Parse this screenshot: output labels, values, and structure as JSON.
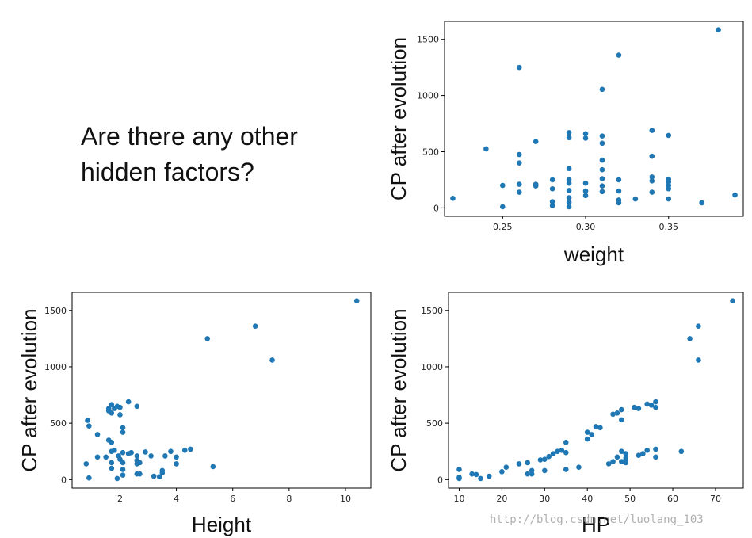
{
  "slide": {
    "question_lines": [
      "Are there any other",
      "hidden factors?"
    ],
    "watermark": "http://blog.csdn.net/luolang_103"
  },
  "colors": {
    "point": "#1f77b4",
    "axis": "#000000",
    "text": "#111111"
  },
  "chart_data": [
    {
      "type": "scatter",
      "xlabel": "weight",
      "ylabel": "CP after evolution",
      "xlim": [
        0.215,
        0.395
      ],
      "ylim": [
        -75,
        1660
      ],
      "xticks": [
        0.25,
        0.3,
        0.35
      ],
      "xtick_labels": [
        "0.25",
        "0.30",
        "0.35"
      ],
      "yticks": [
        0,
        500,
        1000,
        1500
      ],
      "ytick_labels": [
        "0",
        "500",
        "1000",
        "1500"
      ],
      "points": [
        [
          0.22,
          85
        ],
        [
          0.24,
          525
        ],
        [
          0.25,
          200
        ],
        [
          0.25,
          10
        ],
        [
          0.26,
          1250
        ],
        [
          0.26,
          475
        ],
        [
          0.26,
          400
        ],
        [
          0.26,
          210
        ],
        [
          0.26,
          140
        ],
        [
          0.27,
          590
        ],
        [
          0.27,
          210
        ],
        [
          0.27,
          195
        ],
        [
          0.28,
          250
        ],
        [
          0.28,
          170
        ],
        [
          0.28,
          55
        ],
        [
          0.28,
          20
        ],
        [
          0.29,
          670
        ],
        [
          0.29,
          625
        ],
        [
          0.29,
          350
        ],
        [
          0.29,
          250
        ],
        [
          0.29,
          220
        ],
        [
          0.29,
          155
        ],
        [
          0.29,
          90
        ],
        [
          0.29,
          50
        ],
        [
          0.29,
          10
        ],
        [
          0.3,
          660
        ],
        [
          0.3,
          620
        ],
        [
          0.3,
          220
        ],
        [
          0.3,
          150
        ],
        [
          0.3,
          110
        ],
        [
          0.31,
          1055
        ],
        [
          0.31,
          640
        ],
        [
          0.31,
          575
        ],
        [
          0.31,
          425
        ],
        [
          0.31,
          340
        ],
        [
          0.31,
          260
        ],
        [
          0.31,
          195
        ],
        [
          0.31,
          145
        ],
        [
          0.32,
          1360
        ],
        [
          0.32,
          250
        ],
        [
          0.32,
          150
        ],
        [
          0.32,
          70
        ],
        [
          0.32,
          45
        ],
        [
          0.33,
          80
        ],
        [
          0.34,
          690
        ],
        [
          0.34,
          460
        ],
        [
          0.34,
          275
        ],
        [
          0.34,
          240
        ],
        [
          0.34,
          140
        ],
        [
          0.35,
          645
        ],
        [
          0.35,
          255
        ],
        [
          0.35,
          230
        ],
        [
          0.35,
          200
        ],
        [
          0.35,
          170
        ],
        [
          0.35,
          80
        ],
        [
          0.37,
          45
        ],
        [
          0.38,
          1585
        ],
        [
          0.39,
          115
        ]
      ]
    },
    {
      "type": "scatter",
      "xlabel": "Height",
      "ylabel": "CP after evolution",
      "xlim": [
        0.3,
        10.9
      ],
      "ylim": [
        -75,
        1660
      ],
      "xticks": [
        2,
        4,
        6,
        8,
        10
      ],
      "xtick_labels": [
        "2",
        "4",
        "6",
        "8",
        "10"
      ],
      "yticks": [
        0,
        500,
        1000,
        1500
      ],
      "ytick_labels": [
        "0",
        "500",
        "1000",
        "1500"
      ],
      "points": [
        [
          0.8,
          140
        ],
        [
          0.85,
          525
        ],
        [
          0.9,
          475
        ],
        [
          0.9,
          15
        ],
        [
          1.2,
          400
        ],
        [
          1.2,
          200
        ],
        [
          1.5,
          200
        ],
        [
          1.6,
          630
        ],
        [
          1.6,
          610
        ],
        [
          1.6,
          350
        ],
        [
          1.7,
          665
        ],
        [
          1.7,
          590
        ],
        [
          1.7,
          330
        ],
        [
          1.7,
          250
        ],
        [
          1.7,
          150
        ],
        [
          1.7,
          100
        ],
        [
          1.8,
          630
        ],
        [
          1.8,
          260
        ],
        [
          1.9,
          650
        ],
        [
          1.9,
          10
        ],
        [
          1.95,
          210
        ],
        [
          2.0,
          575
        ],
        [
          2.0,
          640
        ],
        [
          2.0,
          180
        ],
        [
          2.1,
          460
        ],
        [
          2.1,
          420
        ],
        [
          2.1,
          240
        ],
        [
          2.1,
          150
        ],
        [
          2.1,
          90
        ],
        [
          2.1,
          40
        ],
        [
          2.3,
          690
        ],
        [
          2.3,
          230
        ],
        [
          2.4,
          240
        ],
        [
          2.6,
          650
        ],
        [
          2.6,
          210
        ],
        [
          2.6,
          170
        ],
        [
          2.6,
          140
        ],
        [
          2.6,
          50
        ],
        [
          2.7,
          150
        ],
        [
          2.7,
          50
        ],
        [
          2.9,
          245
        ],
        [
          3.1,
          210
        ],
        [
          3.2,
          30
        ],
        [
          3.4,
          25
        ],
        [
          3.5,
          60
        ],
        [
          3.5,
          80
        ],
        [
          3.6,
          210
        ],
        [
          3.8,
          250
        ],
        [
          4.0,
          200
        ],
        [
          4.0,
          140
        ],
        [
          4.3,
          260
        ],
        [
          4.5,
          270
        ],
        [
          5.1,
          1250
        ],
        [
          5.3,
          115
        ],
        [
          6.8,
          1360
        ],
        [
          7.4,
          1060
        ],
        [
          10.4,
          1585
        ]
      ]
    },
    {
      "type": "scatter",
      "xlabel": "HP",
      "ylabel": "CP after evolution",
      "xlim": [
        7.5,
        76.5
      ],
      "ylim": [
        -75,
        1660
      ],
      "xticks": [
        10,
        20,
        30,
        40,
        50,
        60,
        70
      ],
      "xtick_labels": [
        "10",
        "20",
        "30",
        "40",
        "50",
        "60",
        "70"
      ],
      "yticks": [
        0,
        500,
        1000,
        1500
      ],
      "ytick_labels": [
        "0",
        "500",
        "1000",
        "1500"
      ],
      "points": [
        [
          10,
          90
        ],
        [
          10,
          20
        ],
        [
          10,
          10
        ],
        [
          13,
          50
        ],
        [
          14,
          45
        ],
        [
          15,
          10
        ],
        [
          17,
          30
        ],
        [
          20,
          70
        ],
        [
          21,
          110
        ],
        [
          24,
          140
        ],
        [
          26,
          150
        ],
        [
          26,
          50
        ],
        [
          27,
          80
        ],
        [
          27,
          50
        ],
        [
          29,
          175
        ],
        [
          30,
          180
        ],
        [
          30,
          80
        ],
        [
          31,
          205
        ],
        [
          32,
          230
        ],
        [
          33,
          250
        ],
        [
          34,
          260
        ],
        [
          35,
          330
        ],
        [
          35,
          240
        ],
        [
          35,
          90
        ],
        [
          38,
          110
        ],
        [
          40,
          420
        ],
        [
          40,
          360
        ],
        [
          41,
          400
        ],
        [
          42,
          470
        ],
        [
          43,
          460
        ],
        [
          45,
          140
        ],
        [
          46,
          580
        ],
        [
          46,
          160
        ],
        [
          47,
          590
        ],
        [
          47,
          200
        ],
        [
          48,
          620
        ],
        [
          48,
          530
        ],
        [
          48,
          250
        ],
        [
          48,
          160
        ],
        [
          49,
          230
        ],
        [
          49,
          190
        ],
        [
          49,
          170
        ],
        [
          49,
          150
        ],
        [
          51,
          640
        ],
        [
          52,
          630
        ],
        [
          52,
          215
        ],
        [
          53,
          230
        ],
        [
          54,
          670
        ],
        [
          54,
          260
        ],
        [
          55,
          660
        ],
        [
          56,
          690
        ],
        [
          56,
          640
        ],
        [
          56,
          270
        ],
        [
          56,
          200
        ],
        [
          62,
          250
        ],
        [
          64,
          1250
        ],
        [
          66,
          1360
        ],
        [
          66,
          1060
        ],
        [
          74,
          1585
        ]
      ]
    }
  ]
}
